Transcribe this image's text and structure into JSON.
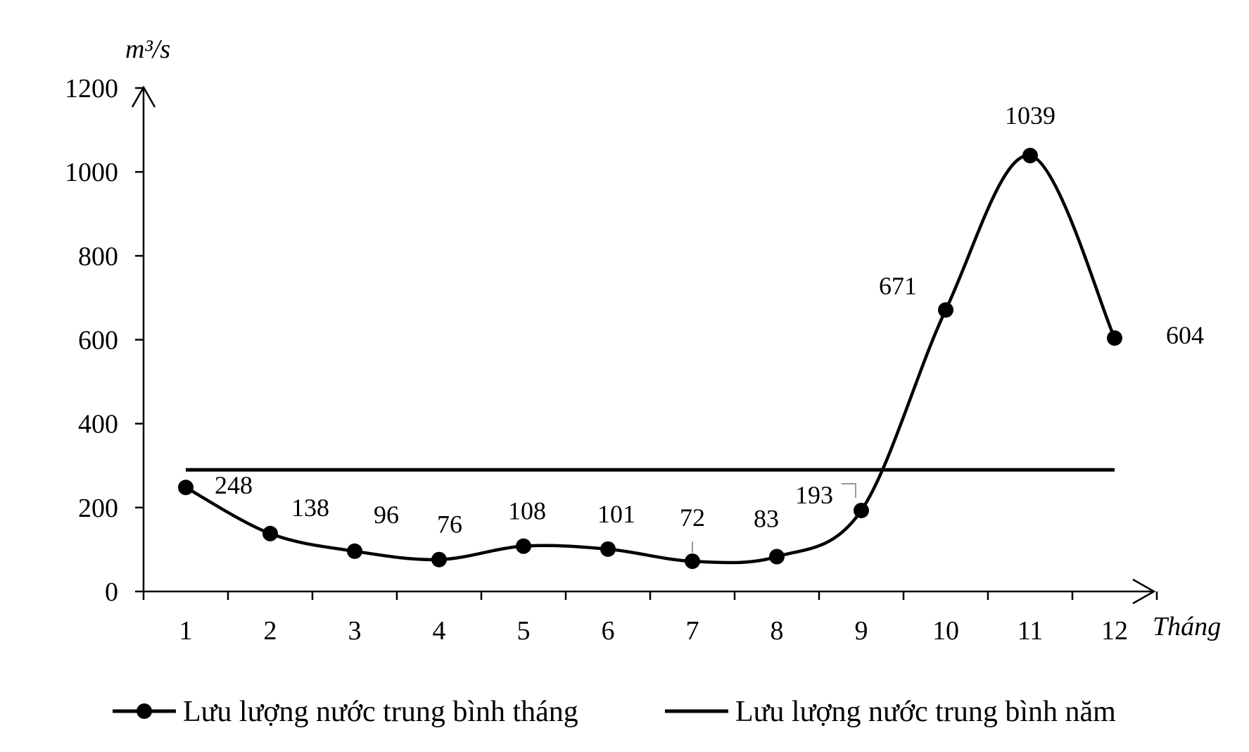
{
  "chart_data": {
    "type": "line",
    "y_unit_label": "m³/s",
    "x_unit_label": "Tháng",
    "categories": [
      "1",
      "2",
      "3",
      "4",
      "5",
      "6",
      "7",
      "8",
      "9",
      "10",
      "11",
      "12"
    ],
    "series": [
      {
        "name": "Lưu lượng nước trung bình tháng",
        "values": [
          248,
          138,
          96,
          76,
          108,
          101,
          72,
          83,
          193,
          671,
          1039,
          604
        ],
        "data_labels": [
          "248",
          "138",
          "96",
          "76",
          "108",
          "101",
          "72",
          "83",
          "193",
          "671",
          "1039",
          "604"
        ],
        "markers": true,
        "smooth": true,
        "color": "#000000"
      },
      {
        "name": "Lưu lượng nước trung bình năm",
        "value": 290,
        "markers": false,
        "color": "#000000"
      }
    ],
    "ylim": [
      0,
      1200
    ],
    "yticks": [
      "0",
      "200",
      "400",
      "600",
      "800",
      "1000",
      "1200"
    ],
    "grid": false,
    "legend_position": "bottom"
  }
}
